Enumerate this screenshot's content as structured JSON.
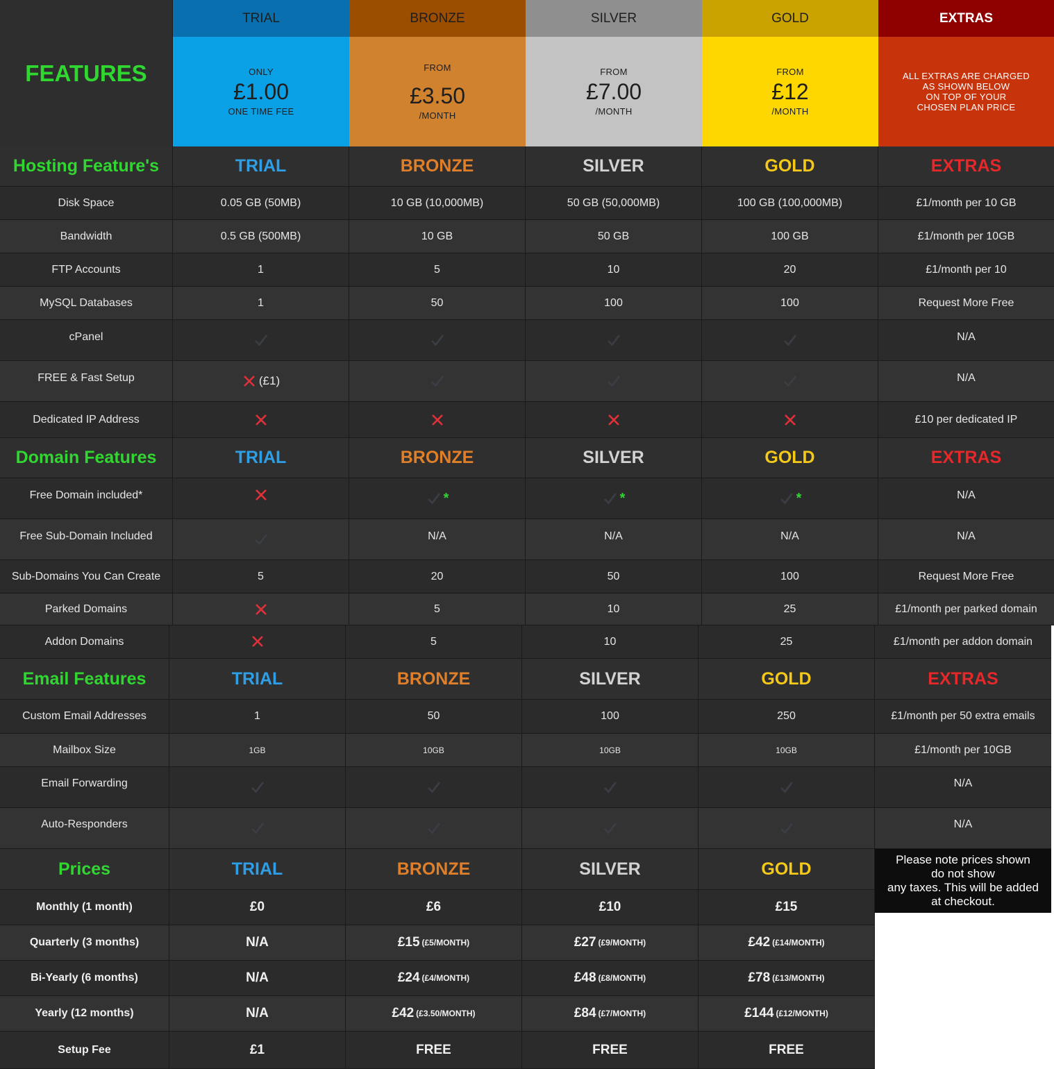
{
  "header": {
    "features_title": "FEATURES",
    "plans": [
      {
        "name": "TRIAL",
        "line1": "ONLY",
        "price": "£1.00",
        "line2": "ONE TIME FEE",
        "bar_color": "#0a6faf",
        "body_color": "#0aa0e6"
      },
      {
        "name": "BRONZE",
        "line1": "FROM",
        "price": "£3.50",
        "line2": "/MONTH",
        "bar_color": "#9b4d00",
        "body_color": "#d1822f"
      },
      {
        "name": "SILVER",
        "line1": "FROM",
        "price": "£7.00",
        "line2": "/MONTH",
        "bar_color": "#8f8f8f",
        "body_color": "#c3c3c3"
      },
      {
        "name": "GOLD",
        "line1": "FROM",
        "price": "£12",
        "line2": "/MONTH",
        "bar_color": "#caa300",
        "body_color": "#fed700"
      }
    ],
    "extras": {
      "name": "EXTRAS",
      "lines": [
        "ALL EXTRAS ARE CHARGED",
        "AS SHOWN BELOW",
        "ON TOP OF YOUR",
        "CHOSEN PLAN PRICE"
      ],
      "bar_color": "#8f0000",
      "body_color": "#c7340c"
    }
  },
  "column_labels": {
    "trial": "TRIAL",
    "bronze": "BRONZE",
    "silver": "SILVER",
    "gold": "GOLD",
    "extras": "EXTRAS"
  },
  "hosting": {
    "title": "Hosting Feature's",
    "rows": [
      {
        "label": "Disk Space",
        "trial": "0.05 GB (50MB)",
        "bronze": "10 GB (10,000MB)",
        "silver": "50 GB (50,000MB)",
        "gold": "100 GB (100,000MB)",
        "extras": "£1/month per 10 GB"
      },
      {
        "label": "Bandwidth",
        "trial": "0.5 GB (500MB)",
        "bronze": "10 GB",
        "silver": "50 GB",
        "gold": "100 GB",
        "extras": "£1/month per 10GB"
      },
      {
        "label": "FTP Accounts",
        "trial": "1",
        "bronze": "5",
        "silver": "10",
        "gold": "20",
        "extras": "£1/month per 10"
      },
      {
        "label": "MySQL Databases",
        "trial": "1",
        "bronze": "50",
        "silver": "100",
        "gold": "100",
        "extras": "Request More Free"
      },
      {
        "label": "cPanel",
        "extras": "N/A"
      },
      {
        "label": "FREE & Fast Setup",
        "trial_note": "(£1)",
        "extras": "N/A"
      },
      {
        "label": "Dedicated IP Address",
        "extras": "£10 per dedicated IP"
      }
    ]
  },
  "domain": {
    "title": "Domain Features",
    "rows": [
      {
        "label": "Free Domain included*",
        "star": "*",
        "extras": "N/A"
      },
      {
        "label": "Free Sub-Domain Included",
        "bronze": "N/A",
        "silver": "N/A",
        "gold": "N/A",
        "extras": "N/A"
      },
      {
        "label": "Sub-Domains You Can Create",
        "trial": "5",
        "bronze": "20",
        "silver": "50",
        "gold": "100",
        "extras": "Request More Free"
      },
      {
        "label": "Parked Domains",
        "bronze": "5",
        "silver": "10",
        "gold": "25",
        "extras": "£1/month per parked domain"
      },
      {
        "label": "Addon Domains",
        "bronze": "5",
        "silver": "10",
        "gold": "25",
        "extras": "£1/month per addon domain"
      }
    ]
  },
  "email": {
    "title": "Email Features",
    "rows": [
      {
        "label": "Custom Email Addresses",
        "trial": "1",
        "bronze": "50",
        "silver": "100",
        "gold": "250",
        "extras": "£1/month per 50 extra emails"
      },
      {
        "label": "Mailbox Size",
        "trial": "1GB",
        "bronze": "10GB",
        "silver": "10GB",
        "gold": "10GB",
        "extras": "£1/month per 10GB"
      },
      {
        "label": "Email Forwarding",
        "extras": "N/A"
      },
      {
        "label": "Auto-Responders",
        "extras": "N/A"
      }
    ]
  },
  "prices": {
    "title": "Prices",
    "note": [
      "Please note prices shown",
      "do not show",
      "any taxes. This will be added",
      "at checkout."
    ],
    "rows": [
      {
        "label": "Monthly (1 month)",
        "trial": "£0",
        "bronze": "£6",
        "silver": "£10",
        "gold": "£15"
      },
      {
        "label": "Quarterly (3 months)",
        "trial": "N/A",
        "bronze": "£15",
        "bronze_note": "(£5/MONTH)",
        "silver": "£27",
        "silver_note": "(£9/MONTH)",
        "gold": "£42",
        "gold_note": "(£14/MONTH)"
      },
      {
        "label": "Bi-Yearly (6 months)",
        "trial": "N/A",
        "bronze": "£24",
        "bronze_note": "(£4/MONTH)",
        "silver": "£48",
        "silver_note": "(£8/MONTH)",
        "gold": "£78",
        "gold_note": "(£13/MONTH)"
      },
      {
        "label": "Yearly (12 months)",
        "trial": "N/A",
        "bronze": "£42",
        "bronze_note": "(£3.50/MONTH)",
        "silver": "£84",
        "silver_note": "(£7/MONTH)",
        "gold": "£144",
        "gold_note": "(£12/MONTH)"
      },
      {
        "label": "Setup Fee",
        "trial": "£1",
        "bronze": "FREE",
        "silver": "FREE",
        "gold": "FREE"
      }
    ]
  },
  "icons": {
    "check": "checkmark-icon",
    "cross": "cross-icon"
  },
  "colors": {
    "trial": "#2e9fe6",
    "bronze": "#e07f2a",
    "silver": "#d2d2d2",
    "gold": "#f5c91a",
    "extras": "#e6282a",
    "section_title": "#31d731"
  }
}
